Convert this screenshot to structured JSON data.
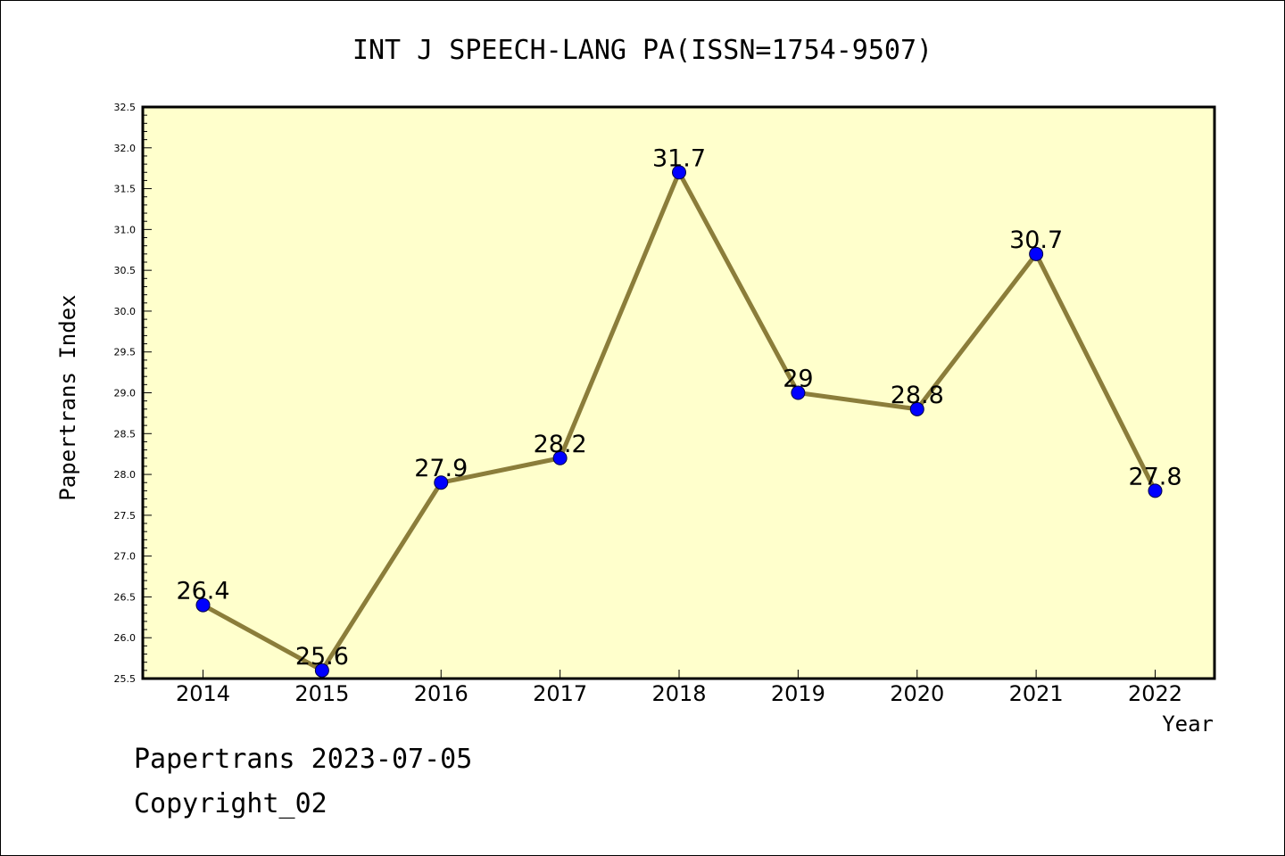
{
  "chart_data": {
    "type": "line",
    "title": "INT J SPEECH-LANG PA(ISSN=1754-9507)",
    "xlabel": "Year",
    "ylabel": "Papertrans Index",
    "categories": [
      "2014",
      "2015",
      "2016",
      "2017",
      "2018",
      "2019",
      "2020",
      "2021",
      "2022"
    ],
    "series": [
      {
        "values": [
          26.4,
          25.6,
          27.9,
          28.2,
          31.7,
          29.0,
          28.8,
          30.7,
          27.8
        ]
      }
    ],
    "data_labels": [
      "26.4",
      "25.6",
      "27.9",
      "28.2",
      "31.7",
      "29",
      "28.8",
      "30.7",
      "27.8"
    ],
    "ylim": [
      25.5,
      32.5
    ],
    "yticks": [
      "25.5",
      "26.0",
      "26.5",
      "27.0",
      "27.5",
      "28.0",
      "28.5",
      "29.0",
      "29.5",
      "30.0",
      "30.5",
      "31.0",
      "31.5",
      "32.0",
      "32.5"
    ],
    "grid": false,
    "colors": {
      "plot_background": "#ffffcc",
      "line": "#8b7d3a",
      "marker": "#0000ff"
    }
  },
  "footer": {
    "date": "Papertrans 2023-07-05",
    "copyright": "Copyright_02"
  }
}
